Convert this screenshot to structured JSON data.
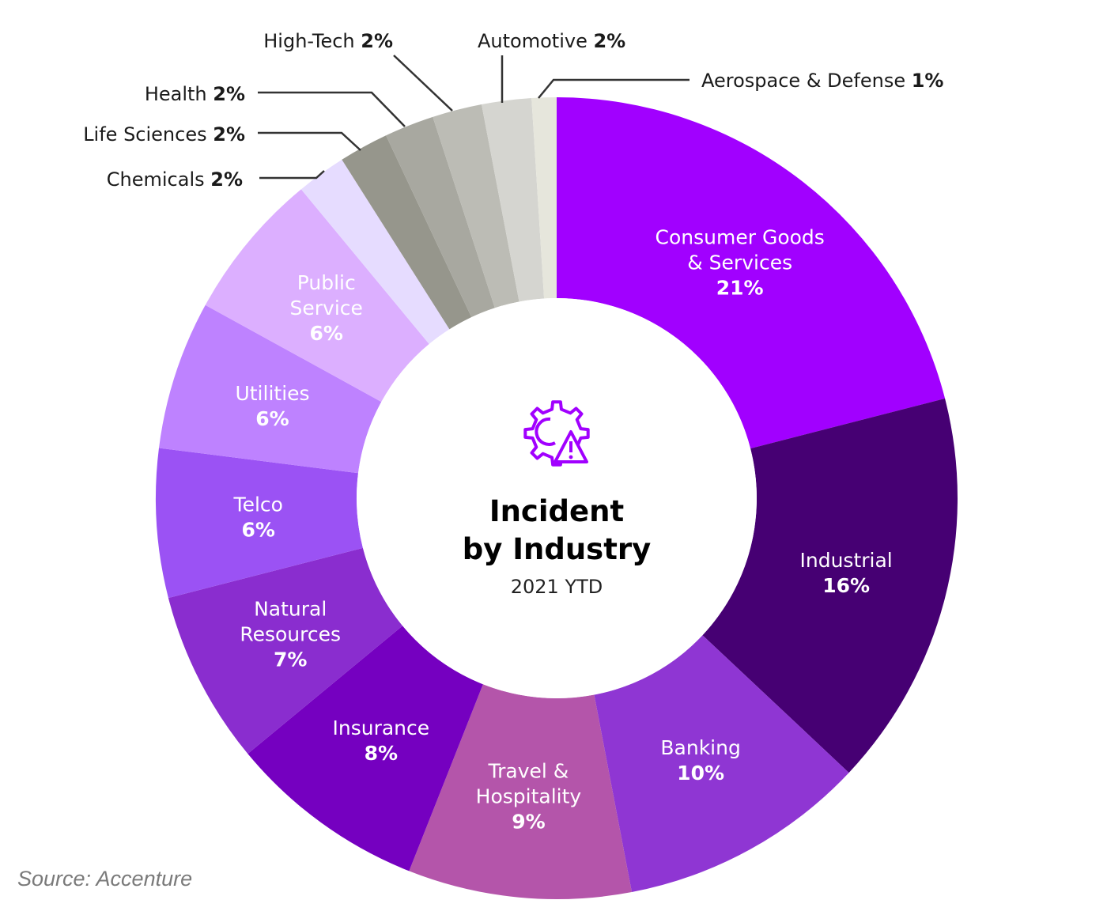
{
  "chart_data": {
    "type": "pie",
    "title": "Incident by Industry",
    "subtitle": "2021 YTD",
    "source": "Source: Accenture",
    "slices": [
      {
        "name": "Consumer Goods & Services",
        "lines": [
          "Consumer Goods",
          "& Services"
        ],
        "value": 21,
        "pct": "21%",
        "color": "#a100ff",
        "placement": "inside"
      },
      {
        "name": "Industrial",
        "lines": [
          "Industrial"
        ],
        "value": 16,
        "pct": "16%",
        "color": "#460073",
        "placement": "inside"
      },
      {
        "name": "Banking",
        "lines": [
          "Banking"
        ],
        "value": 10,
        "pct": "10%",
        "color": "#8f36d3",
        "placement": "inside"
      },
      {
        "name": "Travel & Hospitality",
        "lines": [
          "Travel &",
          "Hospitality"
        ],
        "value": 9,
        "pct": "9%",
        "color": "#b455aa",
        "placement": "inside"
      },
      {
        "name": "Insurance",
        "lines": [
          "Insurance"
        ],
        "value": 8,
        "pct": "8%",
        "color": "#7500c0",
        "placement": "inside"
      },
      {
        "name": "Natural Resources",
        "lines": [
          "Natural",
          "Resources"
        ],
        "value": 7,
        "pct": "7%",
        "color": "#8a2dcf",
        "placement": "inside"
      },
      {
        "name": "Telco",
        "lines": [
          "Telco"
        ],
        "value": 6,
        "pct": "6%",
        "color": "#9b52f4",
        "placement": "inside"
      },
      {
        "name": "Utilities",
        "lines": [
          "Utilities"
        ],
        "value": 6,
        "pct": "6%",
        "color": "#be82ff",
        "placement": "inside"
      },
      {
        "name": "Public Service",
        "lines": [
          "Public",
          "Service"
        ],
        "value": 6,
        "pct": "6%",
        "color": "#dcafff",
        "placement": "inside"
      },
      {
        "name": "Chemicals",
        "lines": [
          "Chemicals"
        ],
        "value": 2,
        "pct": "2%",
        "color": "#e6dcff",
        "placement": "outside"
      },
      {
        "name": "Life Sciences",
        "lines": [
          "Life Sciences"
        ],
        "value": 2,
        "pct": "2%",
        "color": "#96968c",
        "placement": "outside"
      },
      {
        "name": "Health",
        "lines": [
          "Health"
        ],
        "value": 2,
        "pct": "2%",
        "color": "#a8a8a0",
        "placement": "outside"
      },
      {
        "name": "High-Tech",
        "lines": [
          "High-Tech"
        ],
        "value": 2,
        "pct": "2%",
        "color": "#bcbcb5",
        "placement": "outside"
      },
      {
        "name": "Automotive",
        "lines": [
          "Automotive"
        ],
        "value": 2,
        "pct": "2%",
        "color": "#d5d5d0",
        "placement": "outside"
      },
      {
        "name": "Aerospace & Defense",
        "lines": [
          "Aerospace & Defense"
        ],
        "value": 1,
        "pct": "1%",
        "color": "#e6e6dc",
        "placement": "outside"
      }
    ]
  },
  "icon": "gear-warning-icon",
  "icon_color": "#a100ff"
}
